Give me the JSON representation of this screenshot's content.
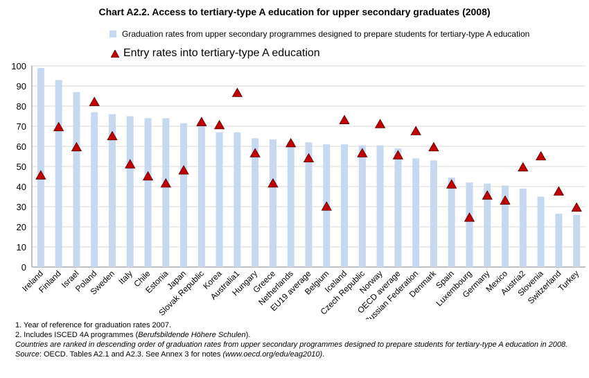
{
  "title": "Chart A2.2.  Access to tertiary-type A education for upper secondary graduates (2008)",
  "legend": {
    "bars": "Graduation rates from upper secondary programmes designed to prepare students for tertiary-type A education",
    "triangles": "Entry rates into tertiary-type A education"
  },
  "colors": {
    "bar": "#c6d9f1",
    "triangle_fill": "#c00000",
    "triangle_stroke": "#5a0000",
    "grid": "#d9d9d9"
  },
  "notes": {
    "note1": "1. Year of reference for graduation rates 2007.",
    "note2_prefix": "2. Includes ISCED 4A programmes (",
    "note2_italic": "Berufsbildende Höhere Schulen",
    "note2_suffix": ").",
    "note3": "Countries are ranked in descending order of graduation rates from upper secondary programmes designed to prepare students for tertiary-type A education in 2008.",
    "source_label": "Source",
    "source_text": ": OECD. Tables A2.1 and A2.3. See Annex 3 for notes ",
    "source_link": "(www.oecd.org/edu/eag2010)",
    "source_end": "."
  },
  "chart_data": {
    "type": "bar",
    "ylim": [
      0,
      100
    ],
    "yticks": [
      0,
      10,
      20,
      30,
      40,
      50,
      60,
      70,
      80,
      90,
      100
    ],
    "grid": true,
    "categories": [
      "Ireland",
      "Finland",
      "Israel",
      "Poland",
      "Sweden",
      "Italy",
      "Chile",
      "Estonia",
      "Japan",
      "Slovak Republic",
      "Korea",
      "Australia1",
      "Hungary",
      "Greece",
      "Netherlands",
      "EU19 average",
      "Belgium",
      "Iceland",
      "Czech Republic",
      "Norway",
      "OECD average",
      "Russian Federation",
      "Denmark",
      "Spain",
      "Luxembourg",
      "Germany",
      "Mexico",
      "Austria2",
      "Slovenia",
      "Switzerland",
      "Turkey"
    ],
    "series": [
      {
        "name": "Graduation rates from upper secondary programmes designed to prepare students for tertiary-type A education",
        "kind": "bar",
        "values": [
          99,
          93,
          87,
          77,
          76,
          75,
          74,
          74,
          71.5,
          71,
          67,
          67,
          64,
          63.5,
          62.5,
          62,
          61,
          61,
          60.5,
          60.5,
          59,
          54,
          53,
          44.5,
          42,
          41.5,
          40.5,
          39,
          35,
          26.5,
          26
        ]
      },
      {
        "name": "Entry rates into tertiary-type A education",
        "kind": "triangle",
        "values": [
          45.5,
          69.5,
          59.5,
          82,
          65,
          51,
          45,
          41.5,
          48,
          72,
          70.5,
          86.5,
          56.5,
          41.5,
          61.5,
          54,
          30,
          73,
          56.5,
          71,
          55.5,
          67.5,
          59.5,
          41,
          24.5,
          35.5,
          33,
          49.5,
          55,
          37.5,
          29.5
        ]
      }
    ]
  }
}
